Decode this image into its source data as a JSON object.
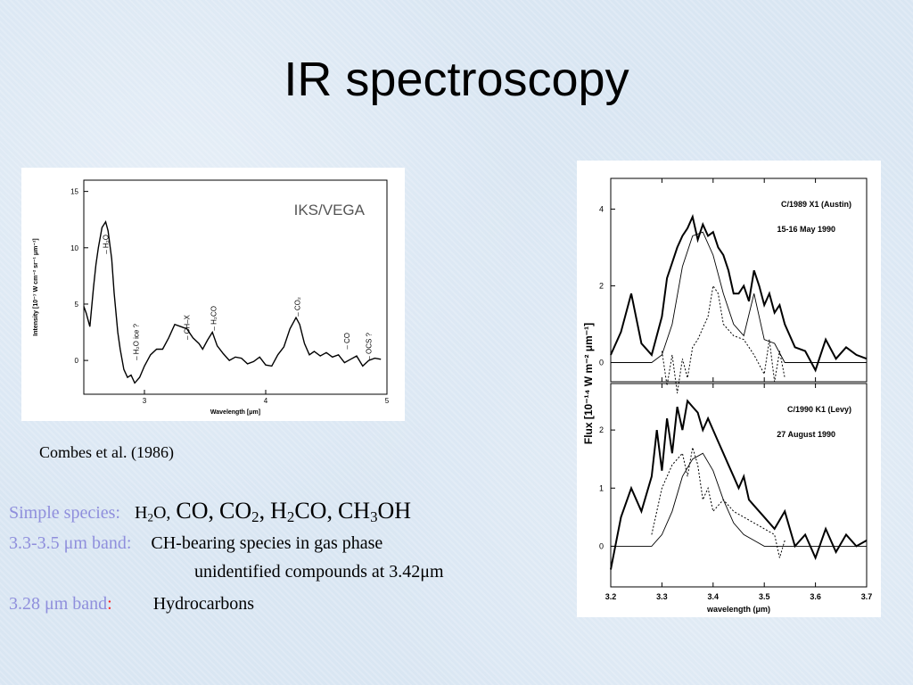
{
  "slide": {
    "title": "IR spectroscopy",
    "caption": "Combes et al. (1986)"
  },
  "text": {
    "line1": {
      "label": "Simple species:",
      "species": [
        {
          "base": "H",
          "sub": "2",
          "rest": "O,"
        },
        {
          "base": "CO,",
          "sub": "",
          "rest": ""
        },
        {
          "base": "CO",
          "sub": "2",
          "rest": ","
        },
        {
          "base": "H",
          "sub": "2",
          "rest": "CO,"
        },
        {
          "base": "CH",
          "sub": "3",
          "rest": "OH"
        }
      ]
    },
    "line2": {
      "label": "3.3-3.5 μm band:",
      "value": "CH-bearing species in gas phase"
    },
    "line3": {
      "value": "unidentified compounds at 3.42μm"
    },
    "line4": {
      "label": "3.28 μm band",
      "colon": ":",
      "value": "Hydrocarbons"
    }
  },
  "colors": {
    "label": "#8f8fdc",
    "accent_red": "#ff2020",
    "background": "#dce8f4"
  },
  "chart_data": [
    {
      "type": "line",
      "title": "",
      "overlay_text": "IKS/VEGA",
      "xlabel": "Wavelength [μm]",
      "ylabel": "Intensity [10⁻⁷ W cm⁻² sr⁻¹ μm⁻¹]",
      "xlim": [
        2.5,
        5.0
      ],
      "ylim": [
        -3,
        16
      ],
      "xticks": [
        3,
        4,
        5
      ],
      "yticks": [
        0,
        5,
        10,
        15
      ],
      "series": [
        {
          "x": [
            2.5,
            2.52,
            2.55,
            2.58,
            2.6,
            2.62,
            2.65,
            2.68,
            2.7,
            2.73,
            2.75,
            2.78,
            2.8,
            2.83,
            2.86,
            2.89,
            2.92,
            2.96,
            3.0,
            3.05,
            3.1,
            3.15,
            3.2,
            3.25,
            3.3,
            3.35,
            3.4,
            3.45,
            3.48,
            3.52,
            3.56,
            3.6,
            3.65,
            3.7,
            3.75,
            3.8,
            3.85,
            3.9,
            3.95,
            4.0,
            4.05,
            4.1,
            4.15,
            4.2,
            4.25,
            4.28,
            4.32,
            4.36,
            4.4,
            4.45,
            4.5,
            4.55,
            4.6,
            4.65,
            4.7,
            4.75,
            4.8,
            4.85,
            4.9,
            4.95
          ],
          "y": [
            4.8,
            4.2,
            3.0,
            6.5,
            8.5,
            10.0,
            11.8,
            12.3,
            11.5,
            9.0,
            6.0,
            2.5,
            1.0,
            -0.8,
            -1.5,
            -1.3,
            -2.0,
            -1.5,
            -0.5,
            0.5,
            1.0,
            1.0,
            2.0,
            3.2,
            3.0,
            2.8,
            2.0,
            1.5,
            1.0,
            1.8,
            2.5,
            1.3,
            0.6,
            0.0,
            0.3,
            0.2,
            -0.3,
            -0.1,
            0.3,
            -0.4,
            -0.5,
            0.5,
            1.2,
            2.8,
            3.8,
            3.2,
            1.5,
            0.5,
            0.8,
            0.4,
            0.7,
            0.3,
            0.5,
            -0.2,
            0.1,
            0.4,
            -0.5,
            0.0,
            0.2,
            0.1
          ]
        }
      ],
      "annotations": [
        {
          "label": "H₂O",
          "x": 2.68
        },
        {
          "label": "H₂O ice ?",
          "x": 2.93
        },
        {
          "label": "CH–X",
          "x": 3.35
        },
        {
          "label": "H₂CO",
          "x": 3.57
        },
        {
          "label": "CO₂",
          "x": 4.26
        },
        {
          "label": "CO",
          "x": 4.67
        },
        {
          "label": "OCS ?",
          "x": 4.85
        }
      ]
    },
    {
      "type": "line",
      "panels": [
        {
          "label": "C/1989 X1 (Austin)",
          "date": "15-16 May 1990",
          "ylim": [
            -0.5,
            4.8
          ],
          "yticks": [
            0,
            2,
            4
          ],
          "series": [
            {
              "name": "observed",
              "style": "thick",
              "x": [
                3.2,
                3.22,
                3.24,
                3.26,
                3.28,
                3.3,
                3.31,
                3.32,
                3.33,
                3.34,
                3.35,
                3.36,
                3.37,
                3.38,
                3.39,
                3.4,
                3.41,
                3.42,
                3.43,
                3.44,
                3.45,
                3.46,
                3.47,
                3.48,
                3.49,
                3.5,
                3.51,
                3.52,
                3.53,
                3.54,
                3.56,
                3.58,
                3.6,
                3.62,
                3.64,
                3.66,
                3.68,
                3.7
              ],
              "y": [
                0.2,
                0.8,
                1.8,
                0.5,
                0.2,
                1.2,
                2.2,
                2.6,
                3.0,
                3.3,
                3.5,
                3.8,
                3.2,
                3.6,
                3.3,
                3.4,
                3.0,
                2.8,
                2.4,
                1.8,
                1.8,
                2.0,
                1.6,
                2.4,
                2.0,
                1.5,
                1.8,
                1.3,
                1.5,
                1.0,
                0.4,
                0.3,
                -0.2,
                0.6,
                0.1,
                0.4,
                0.2,
                0.1
              ]
            },
            {
              "name": "model",
              "style": "thin",
              "x": [
                3.2,
                3.28,
                3.3,
                3.32,
                3.34,
                3.36,
                3.38,
                3.4,
                3.42,
                3.44,
                3.46,
                3.48,
                3.5,
                3.52,
                3.54,
                3.6,
                3.7
              ],
              "y": [
                0.0,
                0.0,
                0.2,
                1.0,
                2.5,
                3.3,
                3.4,
                2.8,
                1.8,
                1.0,
                0.7,
                1.8,
                0.6,
                0.5,
                0.0,
                0.0,
                0.0
              ]
            },
            {
              "name": "residual",
              "style": "dashed",
              "x": [
                3.3,
                3.31,
                3.32,
                3.33,
                3.34,
                3.35,
                3.36,
                3.37,
                3.38,
                3.39,
                3.4,
                3.41,
                3.42,
                3.44,
                3.46,
                3.48,
                3.5,
                3.51,
                3.52,
                3.53,
                3.54
              ],
              "y": [
                0.3,
                -0.6,
                0.2,
                -0.8,
                0.1,
                -0.4,
                0.4,
                0.6,
                0.9,
                1.2,
                2.0,
                1.8,
                1.0,
                0.7,
                0.6,
                0.2,
                -0.3,
                0.6,
                -0.5,
                0.3,
                -0.4
              ]
            }
          ]
        },
        {
          "label": "C/1990 K1 (Levy)",
          "date": "27 August 1990",
          "ylim": [
            -0.7,
            2.8
          ],
          "yticks": [
            0,
            1,
            2
          ],
          "series": [
            {
              "name": "observed",
              "style": "thick",
              "x": [
                3.2,
                3.22,
                3.24,
                3.26,
                3.28,
                3.29,
                3.3,
                3.31,
                3.32,
                3.33,
                3.34,
                3.35,
                3.36,
                3.37,
                3.38,
                3.39,
                3.4,
                3.41,
                3.42,
                3.43,
                3.44,
                3.45,
                3.46,
                3.47,
                3.48,
                3.5,
                3.52,
                3.54,
                3.56,
                3.58,
                3.6,
                3.62,
                3.64,
                3.66,
                3.68,
                3.7
              ],
              "y": [
                -0.4,
                0.5,
                1.0,
                0.6,
                1.2,
                2.0,
                1.3,
                2.2,
                1.6,
                2.4,
                2.0,
                2.5,
                2.4,
                2.3,
                2.0,
                2.2,
                2.0,
                1.8,
                1.6,
                1.4,
                1.2,
                1.0,
                1.2,
                0.8,
                0.7,
                0.5,
                0.3,
                0.6,
                0.0,
                0.2,
                -0.2,
                0.3,
                -0.1,
                0.2,
                0.0,
                0.1
              ]
            },
            {
              "name": "model",
              "style": "thin",
              "x": [
                3.2,
                3.28,
                3.3,
                3.32,
                3.34,
                3.36,
                3.38,
                3.4,
                3.42,
                3.44,
                3.46,
                3.48,
                3.5,
                3.52,
                3.54,
                3.6,
                3.7
              ],
              "y": [
                0.0,
                0.0,
                0.2,
                0.6,
                1.2,
                1.5,
                1.6,
                1.3,
                0.8,
                0.4,
                0.2,
                0.1,
                0.0,
                0.0,
                0.0,
                0.0,
                0.0
              ]
            },
            {
              "name": "residual",
              "style": "dashed",
              "x": [
                3.28,
                3.3,
                3.32,
                3.34,
                3.35,
                3.36,
                3.37,
                3.38,
                3.39,
                3.4,
                3.42,
                3.44,
                3.46,
                3.48,
                3.5,
                3.52,
                3.53,
                3.54
              ],
              "y": [
                0.2,
                1.0,
                1.4,
                1.6,
                1.2,
                1.7,
                1.4,
                0.8,
                1.0,
                0.6,
                0.8,
                0.6,
                0.5,
                0.4,
                0.3,
                0.2,
                -0.2,
                0.1
              ]
            }
          ]
        }
      ],
      "xlabel": "wavelength (μm)",
      "ylabel": "Flux [10⁻¹⁴ W m⁻² μm⁻¹]",
      "xlim": [
        3.2,
        3.7
      ],
      "xticks": [
        3.2,
        3.3,
        3.4,
        3.5,
        3.6,
        3.7
      ]
    }
  ]
}
